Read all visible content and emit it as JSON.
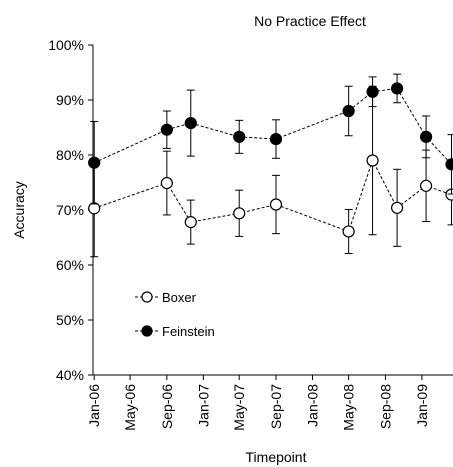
{
  "chart_data": {
    "type": "line",
    "title": "No Practice Effect",
    "xlabel": "Timepoint",
    "ylabel": "Accuracy",
    "ylim": [
      40,
      100
    ],
    "yticks": [
      "40%",
      "50%",
      "60%",
      "70%",
      "80%",
      "90%",
      "100%"
    ],
    "ytick_values": [
      40,
      50,
      60,
      70,
      80,
      90,
      100
    ],
    "xticks": [
      "Jan-06",
      "May-06",
      "Sep-06",
      "Jan-07",
      "May-07",
      "Sep-07",
      "Jan-08",
      "May-08",
      "Sep-08",
      "Jan-09"
    ],
    "xtick_values": [
      "2006-01-01",
      "2006-05-01",
      "2006-09-01",
      "2007-01-01",
      "2007-05-01",
      "2007-09-01",
      "2008-01-01",
      "2008-05-01",
      "2008-09-01",
      "2009-01-01"
    ],
    "xlim": [
      "2005-12-28",
      "2009-04-15"
    ],
    "grid": false,
    "legend_position": "lower-left",
    "series": [
      {
        "name": "Boxer",
        "marker": "open-circle",
        "points": [
          {
            "x": "2006-01-01",
            "y": 70.3,
            "err": 8.8
          },
          {
            "x": "2006-09-01",
            "y": 74.9,
            "err": 5.8
          },
          {
            "x": "2006-11-20",
            "y": 67.8,
            "err": 4.0
          },
          {
            "x": "2007-05-01",
            "y": 69.4,
            "err": 4.2
          },
          {
            "x": "2007-09-01",
            "y": 71.0,
            "err": 5.3
          },
          {
            "x": "2008-05-01",
            "y": 66.1,
            "err": 4.0
          },
          {
            "x": "2008-07-20",
            "y": 79.0,
            "err": 13.5
          },
          {
            "x": "2008-10-10",
            "y": 70.4,
            "err": 7.0
          },
          {
            "x": "2009-01-15",
            "y": 74.4,
            "err": 6.5
          },
          {
            "x": "2009-04-10",
            "y": 72.8,
            "err": 5.5
          }
        ]
      },
      {
        "name": "Feinstein",
        "marker": "filled-circle",
        "points": [
          {
            "x": "2006-01-01",
            "y": 78.6,
            "err": 7.5
          },
          {
            "x": "2006-09-01",
            "y": 84.6,
            "err": 3.4
          },
          {
            "x": "2006-11-20",
            "y": 85.8,
            "err": 6.0
          },
          {
            "x": "2007-05-01",
            "y": 83.3,
            "err": 3.0
          },
          {
            "x": "2007-09-01",
            "y": 82.9,
            "err": 3.5
          },
          {
            "x": "2008-05-01",
            "y": 88.0,
            "err": 4.5
          },
          {
            "x": "2008-07-20",
            "y": 91.5,
            "err": 2.7
          },
          {
            "x": "2008-10-10",
            "y": 92.1,
            "err": 2.6
          },
          {
            "x": "2009-01-15",
            "y": 83.3,
            "err": 3.8
          },
          {
            "x": "2009-04-10",
            "y": 78.3,
            "err": 5.4
          }
        ]
      }
    ]
  }
}
